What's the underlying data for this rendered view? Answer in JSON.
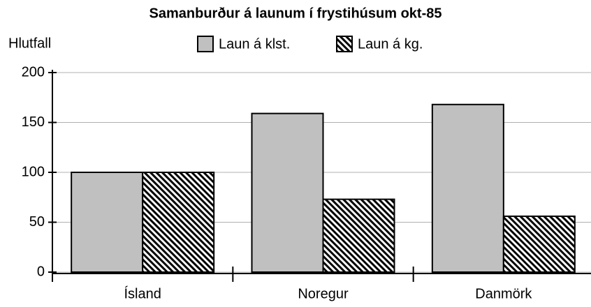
{
  "chart_data": {
    "type": "bar",
    "title": "Samanburður á launum í frystihúsum okt-85",
    "y_label": "Hlutfall",
    "categories": [
      "Ísland",
      "Noregur",
      "Danmörk"
    ],
    "series": [
      {
        "name": "Laun á klst.",
        "color": "#c0c0c0",
        "values": [
          100,
          159,
          168
        ]
      },
      {
        "name": "Laun á kg.",
        "color": "#000000",
        "hatch": "diagonal",
        "values": [
          100,
          73,
          56
        ]
      }
    ],
    "ylim": [
      0,
      200
    ],
    "yticks": [
      0,
      50,
      100,
      150,
      200
    ],
    "grid": true,
    "legend": "top"
  }
}
